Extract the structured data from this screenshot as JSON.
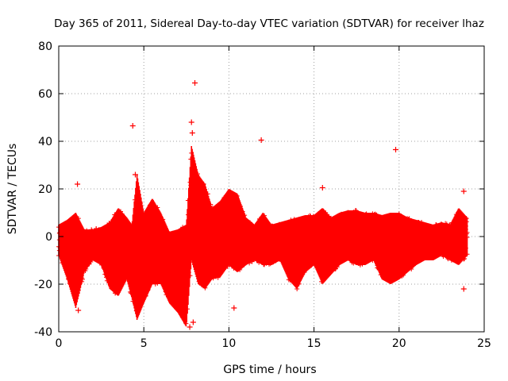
{
  "chart_data": {
    "type": "scatter",
    "title": "Day 365 of 2011, Sidereal Day-to-day VTEC variation (SDTVAR) for receiver lhaz",
    "xlabel": "GPS time / hours",
    "ylabel": "SDTVAR / TECUs",
    "xlim": [
      0,
      25
    ],
    "ylim": [
      -40,
      80
    ],
    "xticks": [
      0,
      5,
      10,
      15,
      20,
      25
    ],
    "yticks": [
      -40,
      -20,
      0,
      20,
      40,
      60,
      80
    ],
    "grid": true,
    "marker": "+",
    "series_color": "#ff0000",
    "envelope": [
      [
        0.0,
        -8,
        5
      ],
      [
        0.5,
        -18,
        7
      ],
      [
        1.0,
        -30,
        10
      ],
      [
        1.5,
        -15,
        3
      ],
      [
        2.0,
        -10,
        3
      ],
      [
        2.5,
        -12,
        4
      ],
      [
        3.0,
        -22,
        6
      ],
      [
        3.5,
        -25,
        12
      ],
      [
        4.0,
        -18,
        8
      ],
      [
        4.3,
        -26,
        5
      ],
      [
        4.6,
        -35,
        26
      ],
      [
        5.0,
        -28,
        10
      ],
      [
        5.5,
        -20,
        16
      ],
      [
        6.0,
        -20,
        10
      ],
      [
        6.5,
        -28,
        2
      ],
      [
        7.0,
        -32,
        3
      ],
      [
        7.5,
        -38,
        5
      ],
      [
        7.8,
        -10,
        38
      ],
      [
        8.2,
        -20,
        26
      ],
      [
        8.6,
        -22,
        22
      ],
      [
        9.0,
        -18,
        12
      ],
      [
        9.5,
        -17,
        15
      ],
      [
        10.0,
        -12,
        20
      ],
      [
        10.5,
        -15,
        18
      ],
      [
        11.0,
        -12,
        8
      ],
      [
        11.5,
        -10,
        5
      ],
      [
        12.0,
        -12,
        10
      ],
      [
        12.5,
        -12,
        5
      ],
      [
        13.0,
        -10,
        6
      ],
      [
        13.5,
        -18,
        7
      ],
      [
        14.0,
        -22,
        8
      ],
      [
        14.5,
        -15,
        9
      ],
      [
        15.0,
        -12,
        9
      ],
      [
        15.5,
        -20,
        12
      ],
      [
        16.0,
        -16,
        8
      ],
      [
        16.5,
        -12,
        10
      ],
      [
        17.0,
        -10,
        11
      ],
      [
        17.5,
        -12,
        11
      ],
      [
        18.0,
        -12,
        10
      ],
      [
        18.5,
        -10,
        10
      ],
      [
        19.0,
        -18,
        9
      ],
      [
        19.5,
        -20,
        10
      ],
      [
        20.0,
        -18,
        10
      ],
      [
        20.5,
        -15,
        8
      ],
      [
        21.0,
        -12,
        7
      ],
      [
        21.5,
        -10,
        6
      ],
      [
        22.0,
        -10,
        5
      ],
      [
        22.5,
        -8,
        6
      ],
      [
        23.0,
        -10,
        5
      ],
      [
        23.5,
        -12,
        12
      ],
      [
        24.0,
        -8,
        8
      ]
    ],
    "outliers": [
      [
        4.35,
        46.5
      ],
      [
        8.0,
        64.5
      ],
      [
        7.8,
        48
      ],
      [
        7.85,
        43.5
      ],
      [
        19.8,
        36.5
      ],
      [
        1.1,
        22
      ],
      [
        11.9,
        40.5
      ],
      [
        15.5,
        20.5
      ],
      [
        23.8,
        19
      ],
      [
        4.5,
        26
      ],
      [
        7.7,
        -38
      ],
      [
        7.9,
        -36
      ],
      [
        10.3,
        -30
      ],
      [
        1.15,
        -31
      ],
      [
        23.8,
        -22
      ]
    ]
  }
}
